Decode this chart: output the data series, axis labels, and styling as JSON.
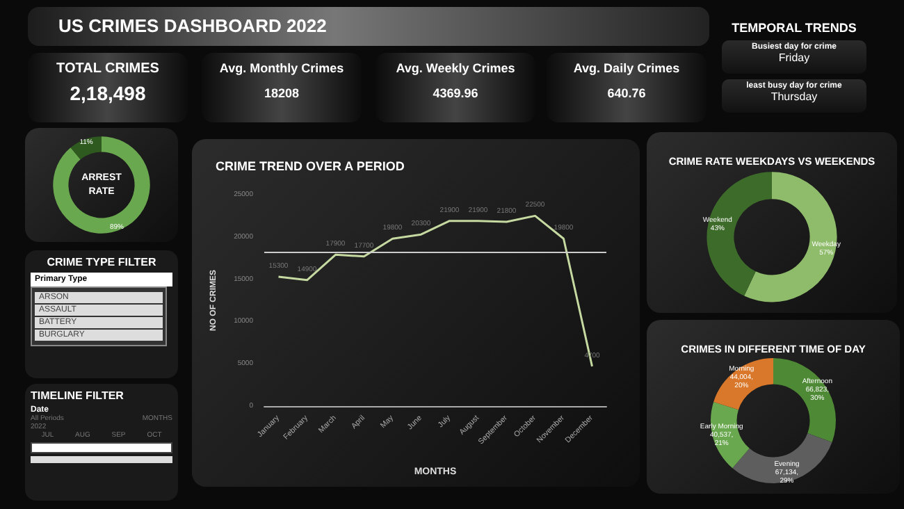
{
  "chart_data": [
    {
      "type": "other",
      "title": "US CRIMES DASHBOARD 2022"
    },
    {
      "type": "other",
      "title": "TOTAL CRIMES",
      "annotations": [
        "2,18,498"
      ]
    },
    {
      "type": "other",
      "title": "Avg. Monthly Crimes",
      "annotations": [
        "18208"
      ]
    },
    {
      "type": "other",
      "title": "Avg. Weekly Crimes",
      "annotations": [
        "4369.96"
      ]
    },
    {
      "type": "other",
      "title": "Avg. Daily Crimes",
      "annotations": [
        "640.76"
      ]
    },
    {
      "type": "other",
      "title": "TEMPORAL TRENDS",
      "annotations": [
        "Busiest  day for crime",
        "Friday",
        "least busy day for crime",
        "Thursday"
      ]
    },
    {
      "type": "donut",
      "title": "ARREST RATE",
      "categories": [
        null,
        null
      ],
      "values": [
        89,
        11
      ],
      "colors": [
        "#6aa84f",
        "#2f5a1f"
      ],
      "value_labels": [
        "89%",
        "11%"
      ]
    },
    {
      "type": "other",
      "title": "CRIME TYPE FILTER",
      "annotations": [
        "Primary Type",
        "ARSON",
        "ASSAULT",
        "BATTERY",
        "BURGLARY"
      ]
    },
    {
      "type": "other",
      "title": "TIMELINE FILTER",
      "annotations": [
        "Date",
        "All Periods",
        "MONTHS",
        "2022",
        "JUL",
        "AUG",
        "SEP",
        "OCT"
      ]
    },
    {
      "type": "line",
      "title": "CRIME TREND OVER A PERIOD",
      "xlabel": "MONTHS",
      "ylabel": "NO OF CRIMES",
      "categories": [
        "January",
        "February",
        "March",
        "April",
        "May",
        "June",
        "July",
        "August",
        "September",
        "October",
        "November",
        "December"
      ],
      "series": [
        {
          "color": "#c5d9a0",
          "values": [
            15300,
            14900,
            17900,
            17700,
            19800,
            20300,
            21900,
            21900,
            21800,
            22500,
            19800,
            4700
          ]
        }
      ],
      "ylim": [
        0,
        25000
      ],
      "yticks": [
        0,
        5000,
        10000,
        15000,
        20000,
        25000
      ],
      "grid": false,
      "marker": "none",
      "data_labels": true,
      "ref_lines": [
        {
          "axis": "y",
          "value": 18208,
          "color": "#cccccc"
        }
      ]
    },
    {
      "type": "donut",
      "title": "CRIME RATE WEEKDAYS VS WEEKENDS",
      "categories": [
        "Weekday",
        "Weekend"
      ],
      "values": [
        57,
        43
      ],
      "colors": [
        "#8fbc6a",
        "#3d6b2a"
      ],
      "value_labels": [
        "57%",
        "43%"
      ]
    },
    {
      "type": "donut",
      "title": "CRIMES IN DIFFERENT TIME OF DAY",
      "categories": [
        "Afternoon",
        "Evening",
        "Early Morning",
        "Morning"
      ],
      "values": [
        66823,
        67134,
        40537,
        44004
      ],
      "colors": [
        "#4e8a35",
        "#5e5e5e",
        "#6aa84f",
        "#d9782a"
      ],
      "value_labels": [
        "66,823, 30%",
        "67,134, 29%",
        "40,537, 21%",
        "44,004, 20%"
      ]
    }
  ]
}
